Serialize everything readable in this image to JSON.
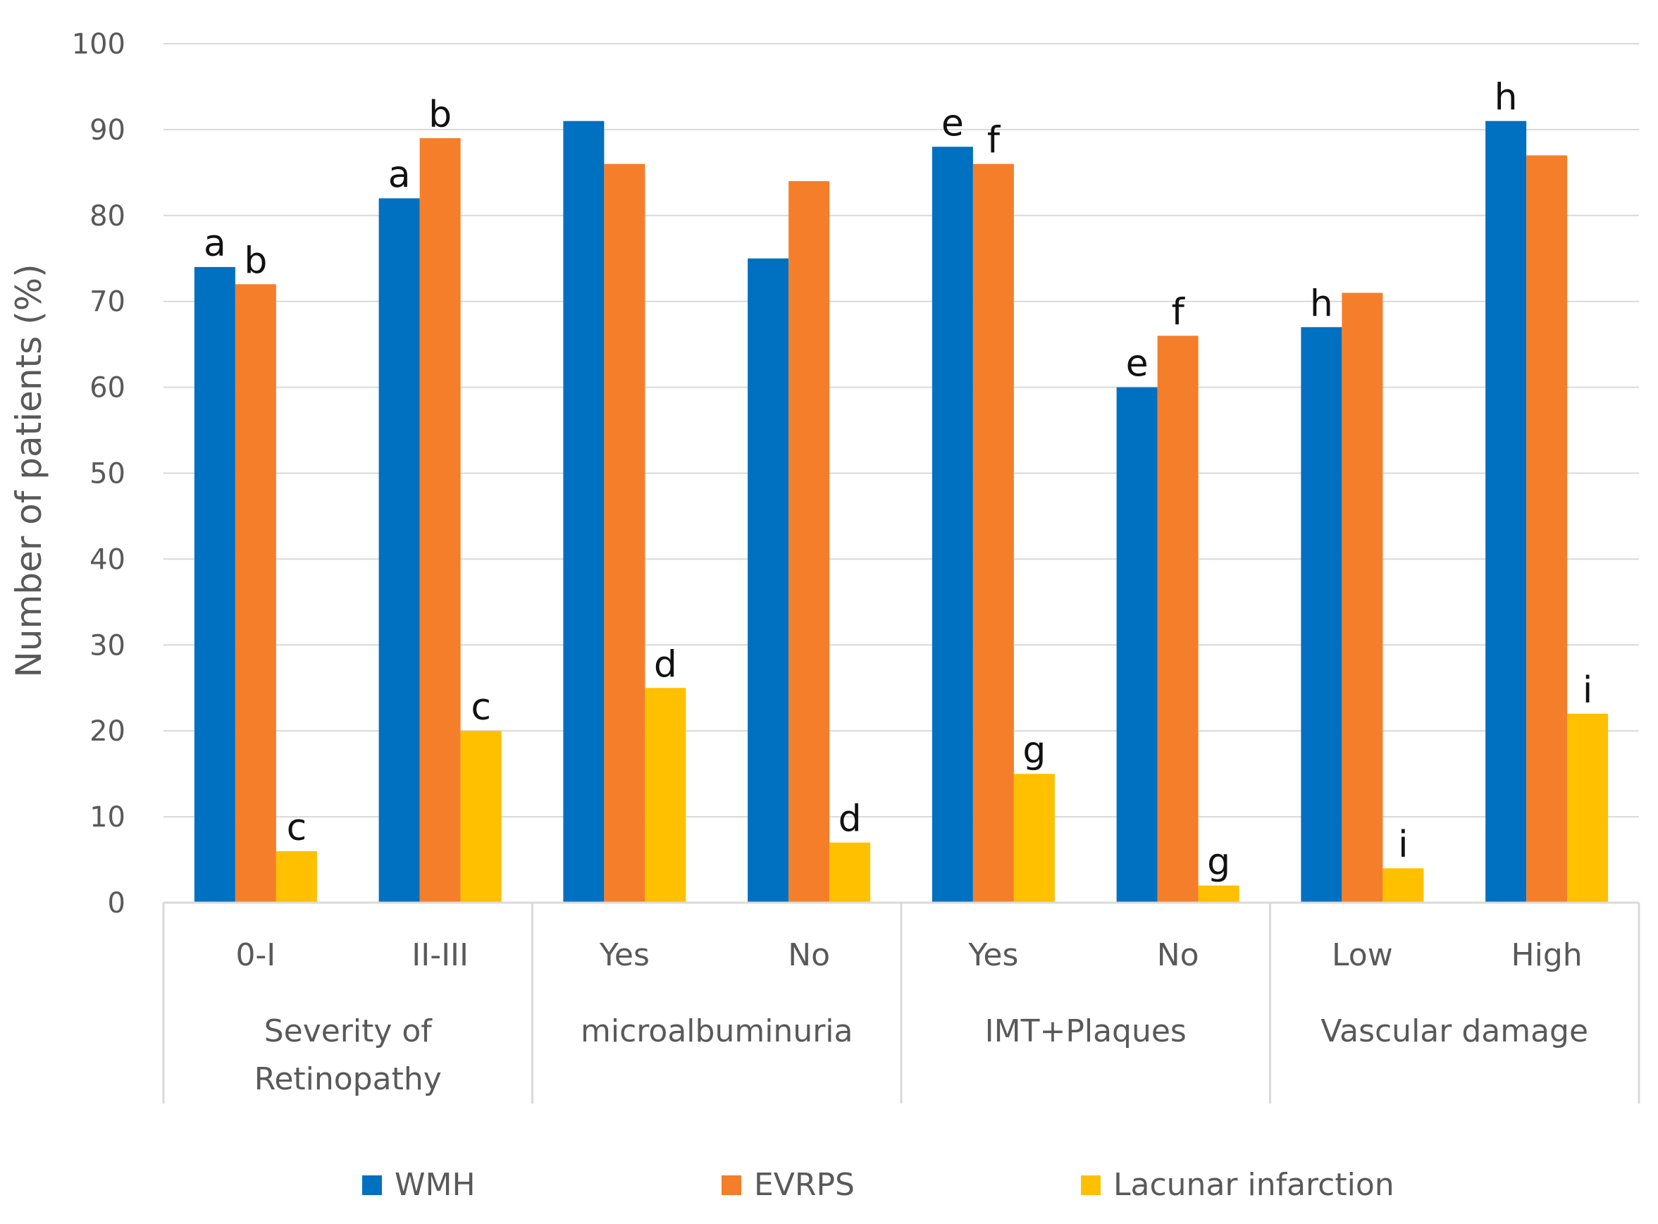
{
  "chart_data": {
    "type": "bar",
    "ylabel": "Number of patients (%)",
    "ylim": [
      0,
      100
    ],
    "yticks": [
      0,
      10,
      20,
      30,
      40,
      50,
      60,
      70,
      80,
      90,
      100
    ],
    "grid": true,
    "legend_position": "bottom",
    "categories": [
      "0-I",
      "II-III",
      "Yes",
      "No",
      "Yes",
      "No",
      "Low",
      "High"
    ],
    "groups": [
      {
        "label": [
          "Severity of",
          "Retinopathy"
        ],
        "span": 2
      },
      {
        "label": [
          "microalbuminuria"
        ],
        "span": 2
      },
      {
        "label": [
          "IMT+Plaques"
        ],
        "span": 2
      },
      {
        "label": [
          "Vascular damage"
        ],
        "span": 2
      }
    ],
    "series": [
      {
        "name": "WMH",
        "color": "#0070C0",
        "values": [
          74,
          82,
          91,
          75,
          88,
          60,
          67,
          91
        ],
        "annotations": [
          "a",
          "a",
          "",
          "",
          "e",
          "e",
          "h",
          "h"
        ]
      },
      {
        "name": "EVRPS",
        "color": "#F57E2A",
        "values": [
          72,
          89,
          86,
          84,
          86,
          66,
          71,
          87
        ],
        "annotations": [
          "b",
          "b",
          "",
          "",
          "f",
          "f",
          "",
          ""
        ]
      },
      {
        "name": "Lacunar infarction",
        "color": "#FFC000",
        "values": [
          6,
          20,
          25,
          7,
          15,
          2,
          4,
          22
        ],
        "annotations": [
          "c",
          "c",
          "d",
          "d",
          "g",
          "g",
          "i",
          "i"
        ]
      }
    ]
  }
}
